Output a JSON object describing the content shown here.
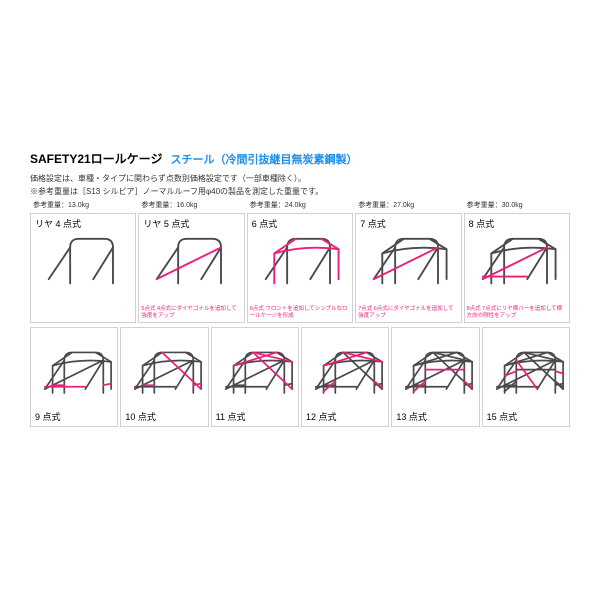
{
  "header": {
    "title": "SAFETY21ロールケージ",
    "subtitle": "スチール（冷間引抜継目無炭素鋼製）",
    "desc1": "価格設定は、車種・タイプに関わらず点数別価格設定です（一部車種除く）。",
    "desc2": "※参考重量は［S13 シルビア］ノーマルルーフ用φ40の製品を測定した重量です。"
  },
  "colors": {
    "title_color": "#000000",
    "subtitle_color": "#1e90e8",
    "base_tube": "#4a4a4a",
    "accent_tube": "#ec1e79",
    "border": "#d0d0d0",
    "note_color": "#ec1e79"
  },
  "row1": [
    {
      "weight": "参考重量：13.0kg",
      "label": "リヤ 4 点式",
      "note": "",
      "cage": "r4"
    },
    {
      "weight": "参考重量：16.0kg",
      "label": "リヤ 5 点式",
      "note": "5点式 4点式にダイヤゴナルを追加して強度をアップ",
      "cage": "r5"
    },
    {
      "weight": "参考重量：24.0kg",
      "label": "6 点式",
      "note": "6点式 フロントを追加してシンプルなロールケージを形成",
      "cage": "p6"
    },
    {
      "weight": "参考重量：27.0kg",
      "label": "7 点式",
      "note": "7点式 6点式にダイヤゴナルを追加して強度アップ",
      "cage": "p7"
    },
    {
      "weight": "参考重量：30.0kg",
      "label": "8 点式",
      "note": "8点式 7点式にリヤ横バーを追加して横方向の剛性をアップ",
      "cage": "p8"
    }
  ],
  "row2": [
    {
      "label": "9 点式",
      "cage": "p9"
    },
    {
      "label": "10 点式",
      "cage": "p10"
    },
    {
      "label": "11 点式",
      "cage": "p11"
    },
    {
      "label": "12 点式",
      "cage": "p12"
    },
    {
      "label": "13 点式",
      "cage": "p13"
    },
    {
      "label": "15 点式",
      "cage": "p15"
    }
  ],
  "stroke": {
    "base_w": 2.2,
    "accent_w": 2.2
  }
}
